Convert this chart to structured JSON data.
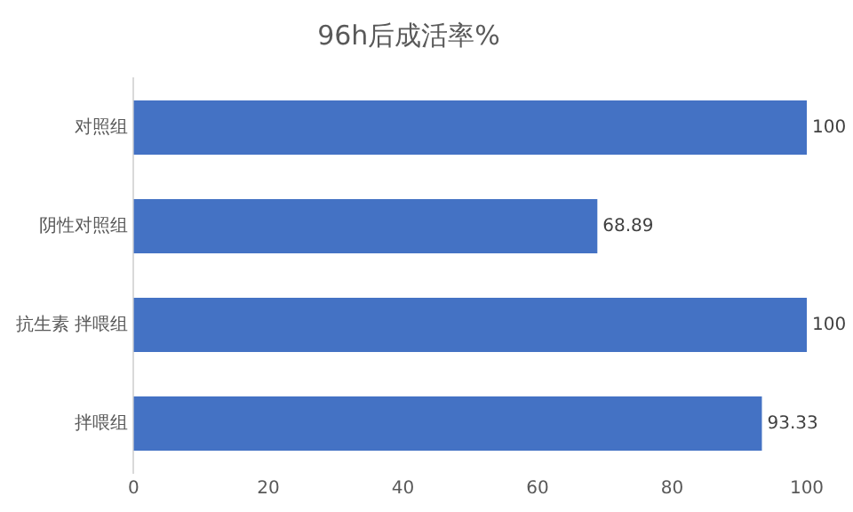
{
  "chart_data": {
    "type": "bar",
    "orientation": "horizontal",
    "title": "96h后成活率%",
    "categories": [
      "对照组",
      "阴性对照组",
      "抗生素 拌喂组",
      "拌喂组"
    ],
    "values": [
      100,
      68.89,
      100,
      93.33
    ],
    "color": "#4472c4",
    "xlim": [
      0,
      100
    ],
    "xticks": [
      0,
      20,
      40,
      60,
      80,
      100
    ],
    "data_labels": true,
    "grid": false,
    "legend": false
  }
}
